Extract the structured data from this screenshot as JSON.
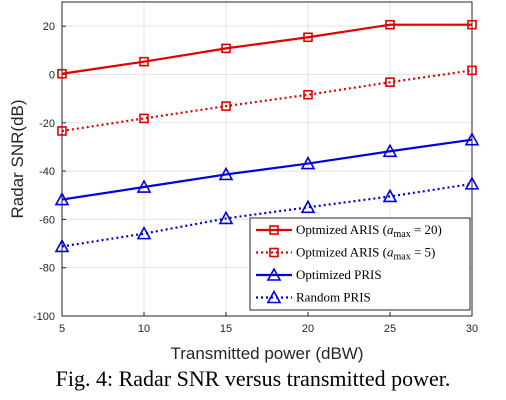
{
  "caption": "Fig. 4: Radar SNR versus transmitted power.",
  "chart_data": {
    "type": "line",
    "xlabel": "Transmitted power (dBW)",
    "ylabel": "Radar SNR(dB)",
    "x": [
      5,
      10,
      15,
      20,
      25,
      30
    ],
    "xlim": [
      5,
      30
    ],
    "ylim": [
      -100,
      30
    ],
    "xticks": [
      "5",
      "10",
      "15",
      "20",
      "25",
      "30"
    ],
    "yticks": [
      "-100",
      "-80",
      "-60",
      "-40",
      "-20",
      "0",
      "20"
    ],
    "grid": true,
    "legend_position": "bottom-right",
    "series": [
      {
        "name": "Optmized ARIS (a_max = 20)",
        "legend_prefix": "Optmized ARIS (",
        "legend_a": "a",
        "legend_sub": "max",
        "legend_suffix": " = 20)",
        "color": "#e00000",
        "dash": "solid",
        "marker": "square",
        "values": [
          0.3,
          5.3,
          10.8,
          15.4,
          20.6,
          20.6
        ]
      },
      {
        "name": "Optmized ARIS (a_max = 5)",
        "legend_prefix": "Optmized ARIS (",
        "legend_a": "a",
        "legend_sub": "max",
        "legend_suffix": " = 5)",
        "color": "#e00000",
        "dash": "dotted",
        "marker": "square",
        "values": [
          -23.4,
          -18.2,
          -13.1,
          -8.4,
          -3.2,
          1.7
        ]
      },
      {
        "name": "Optimized PRIS",
        "legend_prefix": "Optimized PRIS",
        "color": "#0000e0",
        "dash": "solid",
        "marker": "triangle",
        "values": [
          -51.8,
          -46.6,
          -41.4,
          -36.9,
          -31.8,
          -27.0
        ]
      },
      {
        "name": "Random PRIS",
        "legend_prefix": "Random PRIS",
        "color": "#0000e0",
        "dash": "dotted",
        "marker": "triangle",
        "values": [
          -71.2,
          -65.9,
          -59.6,
          -55.0,
          -50.5,
          -45.3
        ]
      }
    ]
  }
}
